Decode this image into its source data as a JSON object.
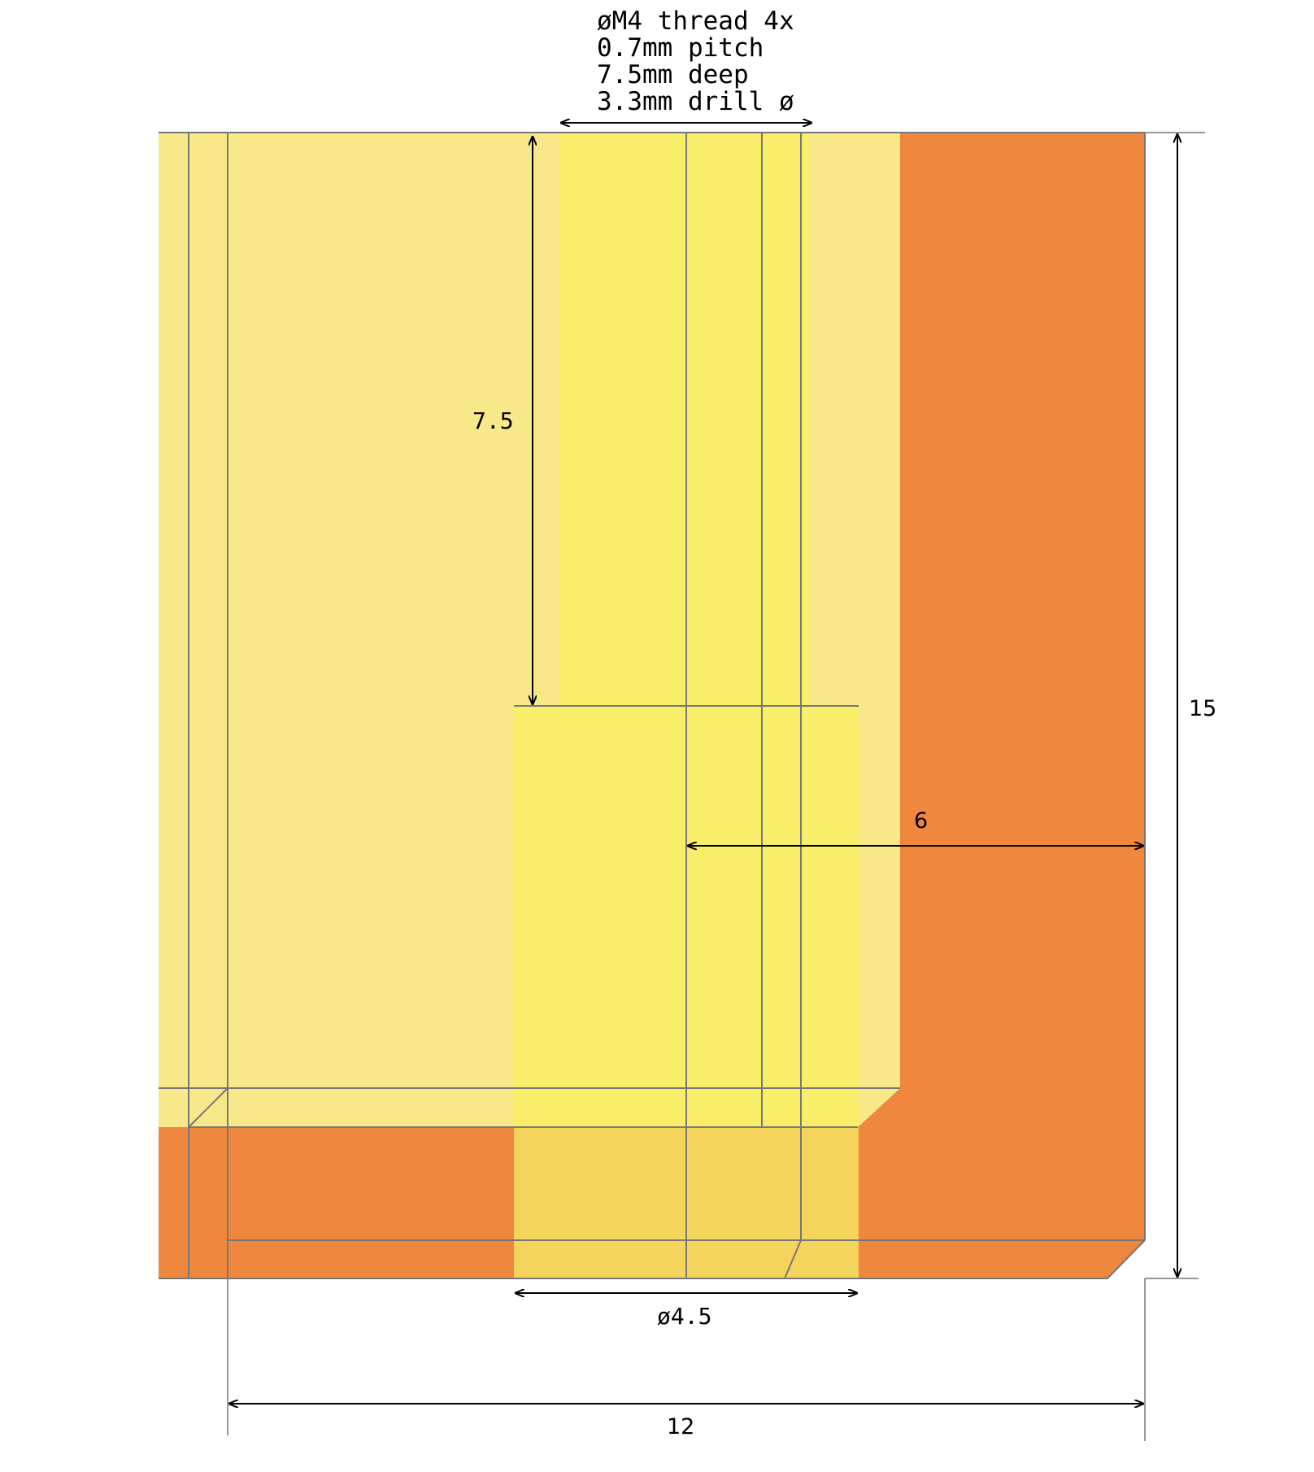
{
  "callout": {
    "line1": "øM4 thread 4x",
    "line2": "0.7mm pitch",
    "line3": "7.5mm deep",
    "line4": "3.3mm drill ø"
  },
  "dimensions": {
    "depth": "7.5",
    "height": "15",
    "offset": "6",
    "hole_diameter": "ø4.5",
    "width": "12"
  },
  "colors": {
    "pale_yellow": "#F7E98A",
    "bright_yellow": "#F9EE6A",
    "gold": "#F5D45C",
    "orange": "#EF873E",
    "edge": "#777777"
  }
}
